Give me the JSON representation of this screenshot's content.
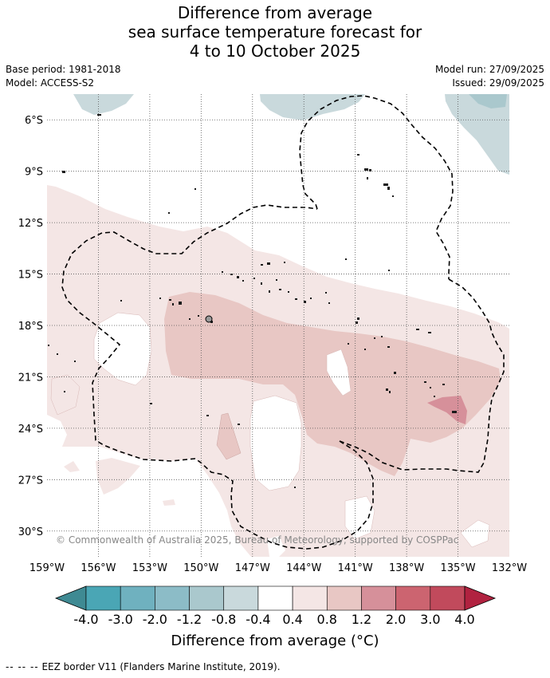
{
  "title": {
    "line1": "Difference from average",
    "line2": "sea surface temperature forecast for",
    "line3": "4 to 10 October 2025"
  },
  "meta": {
    "base_period": "Base period: 1981-2018",
    "model": "Model: ACCESS-S2",
    "model_run": "Model run: 27/09/2025",
    "issued": "Issued: 29/09/2025"
  },
  "copyright": "© Commonwealth of Australia 2025, Bureau of Meteorology, supported by COSPPac",
  "colorbar": {
    "label": "Difference from average (°C)",
    "ticks": [
      "-4.0",
      "-3.0",
      "-2.0",
      "-1.2",
      "-0.8",
      "-0.4",
      "0.4",
      "0.8",
      "1.2",
      "2.0",
      "3.0",
      "4.0"
    ],
    "colors": [
      "#3f8a93",
      "#4aa6b5",
      "#6fb1bf",
      "#8cbcc7",
      "#aac8cd",
      "#c9d9dc",
      "#ffffff",
      "#f4e6e5",
      "#e8c7c4",
      "#d6909a",
      "#cc6470",
      "#c14a5c",
      "#b12240"
    ]
  },
  "footer": {
    "dash_symbol": "--  --  --",
    "text": "EEZ border V11 (Flanders Marine Institute, 2019)."
  },
  "chart_data": {
    "type": "heatmap",
    "variable": "Sea surface temperature anomaly (°C)",
    "x_axis": {
      "range": [
        -159,
        -132
      ],
      "ticks": [
        -159,
        -156,
        -153,
        -150,
        -147,
        -144,
        -141,
        -138,
        -135,
        -132
      ],
      "tick_labels": [
        "159°W",
        "156°W",
        "153°W",
        "150°W",
        "147°W",
        "144°W",
        "141°W",
        "138°W",
        "135°W",
        "132°W"
      ]
    },
    "y_axis": {
      "range": [
        -31.5,
        -4.5
      ],
      "ticks": [
        -6,
        -9,
        -12,
        -15,
        -18,
        -21,
        -24,
        -27,
        -30
      ],
      "tick_labels": [
        "6°S",
        "9°S",
        "12°S",
        "15°S",
        "18°S",
        "21°S",
        "24°S",
        "27°S",
        "30°S"
      ]
    },
    "grid": true,
    "levels": [
      -4.0,
      -3.0,
      -2.0,
      -1.2,
      -0.8,
      -0.4,
      0.4,
      0.8,
      1.2,
      2.0,
      3.0,
      4.0
    ],
    "regions": [
      {
        "name": "cool-north-center",
        "range": "-0.8 to -0.4",
        "approx_center": [
          -144.5,
          -5.0
        ]
      },
      {
        "name": "cool-northeast",
        "range": "-0.8 to -0.4",
        "approx_center": [
          -133.5,
          -6.0
        ]
      },
      {
        "name": "cool-north-west",
        "range": "-0.8 to -0.4",
        "approx_center": [
          -155.0,
          -5.0
        ]
      },
      {
        "name": "warm-broad",
        "range": "0.4 to 0.8",
        "approx_center": [
          -145.0,
          -20.0
        ]
      },
      {
        "name": "warm-core",
        "range": "0.8 to 1.2",
        "approx_center": [
          -143.0,
          -20.0
        ]
      },
      {
        "name": "warm-max",
        "range": "1.2 to 2.0",
        "approx_center": [
          -135.0,
          -22.8
        ]
      }
    ]
  }
}
